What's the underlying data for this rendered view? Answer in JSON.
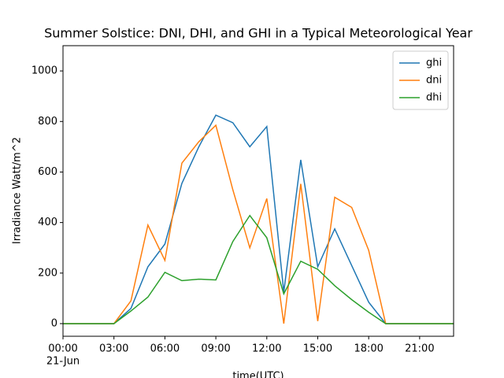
{
  "chart_data": {
    "type": "line",
    "title": "Summer Solstice: DNI, DHI, and GHI in a Typical Meteorological Year",
    "xlabel": "time(UTC)",
    "ylabel": "Irradiance Watt/m^2",
    "x": [
      0,
      1,
      2,
      3,
      4,
      5,
      6,
      7,
      8,
      9,
      10,
      11,
      12,
      13,
      14,
      15,
      16,
      17,
      18,
      19,
      20,
      21,
      22,
      23
    ],
    "series": [
      {
        "name": "ghi",
        "color": "#1f77b4",
        "values": [
          0,
          0,
          0,
          0,
          60,
          225,
          315,
          555,
          700,
          825,
          795,
          700,
          780,
          125,
          648,
          225,
          375,
          230,
          85,
          0,
          0,
          0,
          0,
          0
        ]
      },
      {
        "name": "dni",
        "color": "#ff7f0e",
        "values": [
          0,
          0,
          0,
          0,
          90,
          390,
          250,
          635,
          720,
          785,
          530,
          300,
          495,
          0,
          553,
          10,
          500,
          460,
          290,
          0,
          0,
          0,
          0,
          0
        ]
      },
      {
        "name": "dhi",
        "color": "#2ca02c",
        "values": [
          0,
          0,
          0,
          0,
          50,
          105,
          203,
          170,
          176,
          173,
          325,
          428,
          340,
          118,
          247,
          215,
          150,
          95,
          45,
          0,
          0,
          0,
          0,
          0
        ]
      }
    ],
    "xlim": [
      0,
      23
    ],
    "xticks": [
      {
        "value": 0,
        "label": "00:00"
      },
      {
        "value": 3,
        "label": "03:00"
      },
      {
        "value": 6,
        "label": "06:00"
      },
      {
        "value": 9,
        "label": "09:00"
      },
      {
        "value": 12,
        "label": "12:00"
      },
      {
        "value": 15,
        "label": "15:00"
      },
      {
        "value": 18,
        "label": "18:00"
      },
      {
        "value": 21,
        "label": "21:00"
      }
    ],
    "xtick_sublabel": "21-Jun",
    "ylim": [
      -50,
      1100
    ],
    "yticks": [
      0,
      200,
      400,
      600,
      800,
      1000
    ],
    "grid": false,
    "legend": "upper right"
  }
}
